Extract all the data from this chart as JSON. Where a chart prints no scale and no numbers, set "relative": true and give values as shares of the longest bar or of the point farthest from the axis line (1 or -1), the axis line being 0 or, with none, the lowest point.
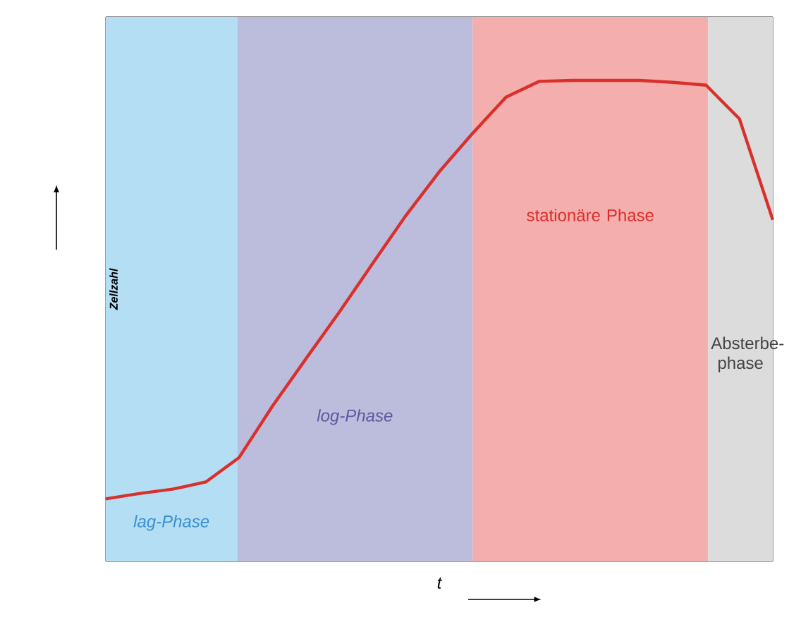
{
  "chart_data": {
    "type": "line",
    "relative": true,
    "xlabel": "t",
    "ylabel": "Zellzahl",
    "color": "#d9302c",
    "categories": [
      null,
      null,
      null,
      null,
      null,
      null,
      null,
      null,
      null,
      null,
      null,
      null,
      null,
      null,
      null,
      null,
      null,
      null,
      null,
      null,
      null
    ],
    "values": [
      0.13,
      0.141,
      0.15,
      0.165,
      0.216,
      0.323,
      0.421,
      0.518,
      0.619,
      0.719,
      0.81,
      0.89,
      0.965,
      0.998,
      1,
      1,
      1,
      0.996,
      0.99,
      0.92,
      0.71
    ],
    "annotations": [
      "lag-Phase",
      "log-Phase",
      "stationäre Phase",
      "Absterbe-phase"
    ]
  }
}
